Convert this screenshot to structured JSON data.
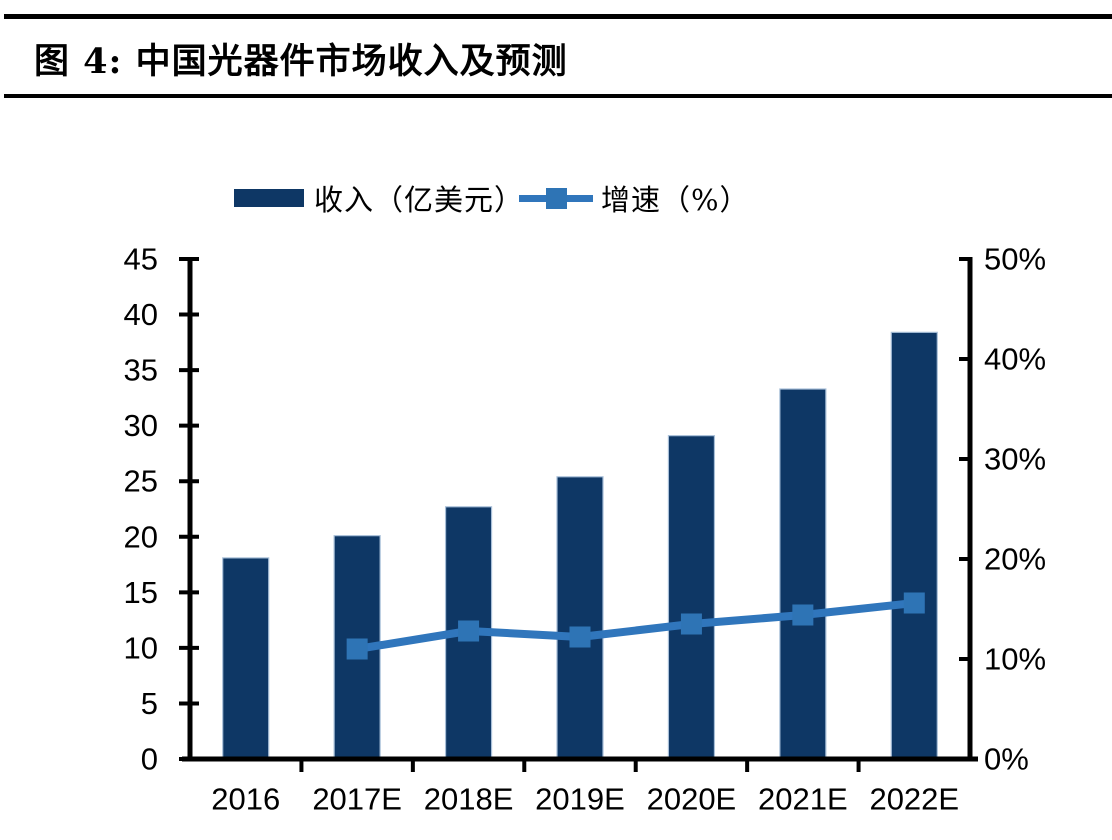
{
  "header": {
    "title": "图 4:  中国光器件市场收入及预测"
  },
  "chart_data": {
    "type": "bar+line",
    "title": "中国光器件市场收入及预测",
    "categories": [
      "2016",
      "2017E",
      "2018E",
      "2019E",
      "2020E",
      "2021E",
      "2022E"
    ],
    "series": [
      {
        "name": "收入（亿美元）",
        "type": "bar",
        "axis": "left",
        "color": "#0E3765",
        "edge_color": "#A8BFD8",
        "values": [
          18.1,
          20.1,
          22.7,
          25.4,
          29.1,
          33.3,
          38.4
        ]
      },
      {
        "name": "增速（%）",
        "type": "line",
        "axis": "right",
        "color": "#3076BC",
        "marker": "square",
        "marker_color": "#2E74B5",
        "values": [
          null,
          11.0,
          12.8,
          12.2,
          13.5,
          14.4,
          15.6
        ]
      }
    ],
    "left_axis": {
      "min": 0,
      "max": 45,
      "step": 5,
      "tick_labels": [
        "0",
        "5",
        "10",
        "15",
        "20",
        "25",
        "30",
        "35",
        "40",
        "45"
      ]
    },
    "right_axis": {
      "min": 0,
      "max": 50,
      "step": 10,
      "suffix": "%",
      "tick_labels": [
        "0%",
        "10%",
        "20%",
        "30%",
        "40%",
        "50%"
      ]
    },
    "legend_position": "top",
    "grid": false,
    "axis_color": "#000000"
  }
}
